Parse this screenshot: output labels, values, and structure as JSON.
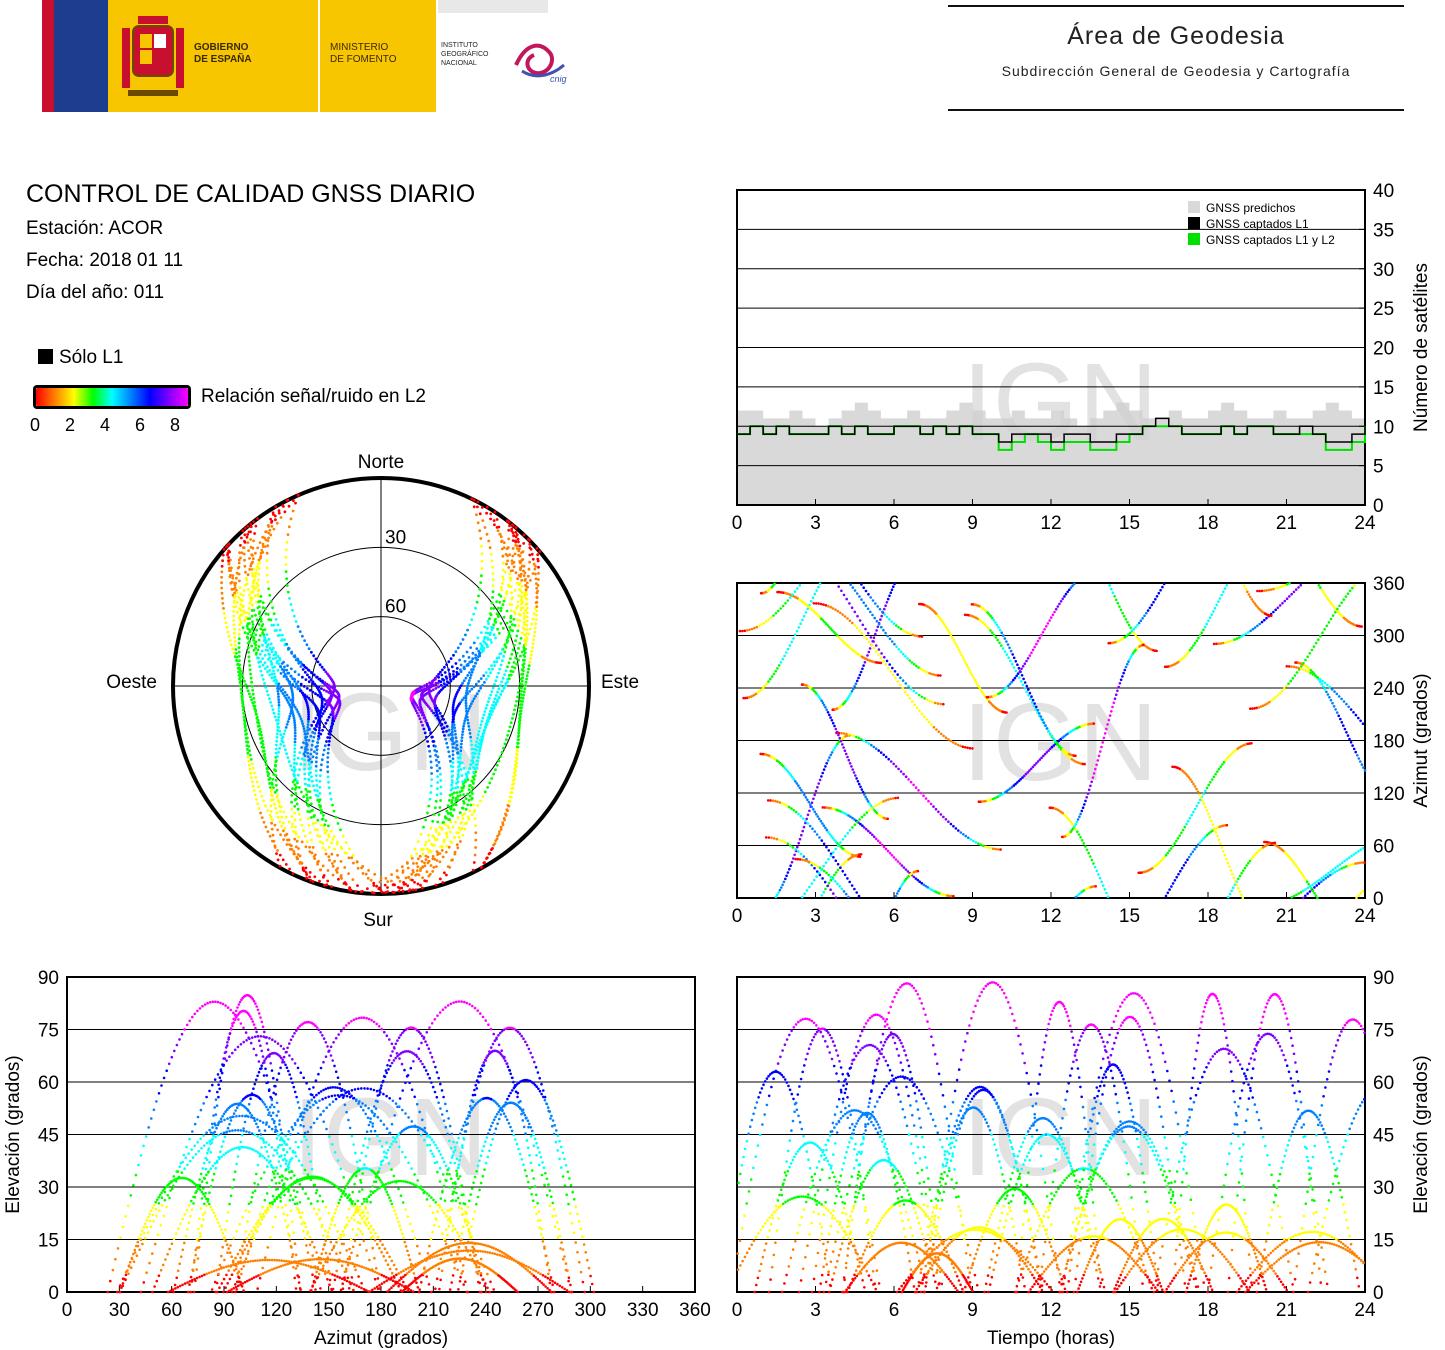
{
  "header": {
    "gov_line1": "GOBIERNO",
    "gov_line2": "DE ESPAÑA",
    "min_line1": "MINISTERIO",
    "min_line2": "DE FOMENTO",
    "ign_line1": "INSTITUTO",
    "ign_line2": "GEOGRÁFICO",
    "ign_line3": "NACIONAL",
    "cnig": "cnig",
    "area_title": "Área de Geodesia",
    "area_subtitle": "Subdirección General de Geodesia y Cartografía"
  },
  "report": {
    "title": "CONTROL DE CALIDAD GNSS DIARIO",
    "station": "Estación: ACOR",
    "date": "Fecha: 2018 01 11",
    "doy": "Día del año: 011",
    "legend_l1": "Sólo L1",
    "legend_snr": "Relación señal/ruido en L2",
    "snr_ticks": [
      "0",
      "2",
      "4",
      "6",
      "8"
    ],
    "watermark": "IGN"
  },
  "colors": {
    "snr_gradient": [
      "#ff0000",
      "#ff8000",
      "#ffff00",
      "#00ff00",
      "#00ffff",
      "#0080ff",
      "#0000ff",
      "#8000ff",
      "#ff00ff"
    ],
    "grid": "#000000",
    "predicted": "#d9d9d9",
    "l1": "#000000",
    "l1l2": "#00e000"
  },
  "chart_data": [
    {
      "type": "area",
      "id": "satellite-count",
      "ylabel": "Número de satélites",
      "x_ticks": [
        "0",
        "3",
        "6",
        "9",
        "12",
        "15",
        "18",
        "21",
        "24"
      ],
      "y_ticks": [
        "0",
        "5",
        "10",
        "15",
        "20",
        "25",
        "30",
        "35",
        "40"
      ],
      "xlim": [
        0,
        24
      ],
      "ylim": [
        0,
        40
      ],
      "legend": [
        "GNSS predichos",
        "GNSS captados L1",
        "GNSS captados L1 y L2"
      ],
      "legend_position": "top-right",
      "series": [
        {
          "name": "GNSS predichos",
          "x": [
            0,
            0.5,
            1,
            1.5,
            2,
            2.5,
            3,
            3.5,
            4,
            4.5,
            5,
            5.5,
            6,
            6.5,
            7,
            7.5,
            8,
            8.5,
            9,
            9.5,
            10,
            10.5,
            11,
            11.5,
            12,
            12.5,
            13,
            13.5,
            14,
            14.5,
            15,
            15.5,
            16,
            16.5,
            17,
            17.5,
            18,
            18.5,
            19,
            19.5,
            20,
            20.5,
            21,
            21.5,
            22,
            22.5,
            23,
            23.5,
            24
          ],
          "values": [
            12,
            12,
            11,
            11,
            12,
            11,
            10,
            11,
            12,
            13,
            12,
            11,
            11,
            12,
            11,
            11,
            12,
            13,
            12,
            11,
            11,
            12,
            11,
            11,
            12,
            11,
            10,
            11,
            12,
            13,
            12,
            11,
            11,
            12,
            11,
            11,
            12,
            13,
            12,
            11,
            11,
            12,
            11,
            11,
            12,
            13,
            12,
            11,
            11
          ]
        },
        {
          "name": "GNSS captados L1",
          "x": [
            0,
            0.5,
            1,
            1.5,
            2,
            2.5,
            3,
            3.5,
            4,
            4.5,
            5,
            5.5,
            6,
            6.5,
            7,
            7.5,
            8,
            8.5,
            9,
            9.5,
            10,
            10.5,
            11,
            11.5,
            12,
            12.5,
            13,
            13.5,
            14,
            14.5,
            15,
            15.5,
            16,
            16.5,
            17,
            17.5,
            18,
            18.5,
            19,
            19.5,
            20,
            20.5,
            21,
            21.5,
            22,
            22.5,
            23,
            23.5,
            24
          ],
          "values": [
            9,
            10,
            9,
            10,
            9,
            9,
            9,
            10,
            9,
            10,
            9,
            9,
            10,
            10,
            9,
            10,
            9,
            10,
            9,
            9,
            8,
            9,
            9,
            9,
            8,
            9,
            9,
            8,
            8,
            9,
            9,
            10,
            11,
            10,
            9,
            9,
            9,
            10,
            9,
            10,
            10,
            9,
            9,
            10,
            9,
            8,
            8,
            9,
            10
          ]
        },
        {
          "name": "GNSS captados L1 y L2",
          "x": [
            0,
            0.5,
            1,
            1.5,
            2,
            2.5,
            3,
            3.5,
            4,
            4.5,
            5,
            5.5,
            6,
            6.5,
            7,
            7.5,
            8,
            8.5,
            9,
            9.5,
            10,
            10.5,
            11,
            11.5,
            12,
            12.5,
            13,
            13.5,
            14,
            14.5,
            15,
            15.5,
            16,
            16.5,
            17,
            17.5,
            18,
            18.5,
            19,
            19.5,
            20,
            20.5,
            21,
            21.5,
            22,
            22.5,
            23,
            23.5,
            24
          ],
          "values": [
            9,
            10,
            9,
            10,
            9,
            9,
            9,
            10,
            9,
            10,
            9,
            9,
            10,
            10,
            9,
            10,
            9,
            10,
            9,
            9,
            7,
            8,
            9,
            8,
            7,
            8,
            8,
            7,
            7,
            8,
            9,
            10,
            10,
            10,
            9,
            9,
            9,
            10,
            9,
            10,
            10,
            9,
            9,
            9,
            9,
            7,
            7,
            8,
            10
          ]
        }
      ]
    },
    {
      "type": "scatter",
      "id": "skyplot",
      "direction_labels": [
        "Norte",
        "Sur",
        "Este",
        "Oeste"
      ],
      "ring_labels": [
        "30",
        "60"
      ]
    },
    {
      "type": "scatter",
      "id": "azimuth-time",
      "ylabel": "Azimut (grados)",
      "x_ticks": [
        "0",
        "3",
        "6",
        "9",
        "12",
        "15",
        "18",
        "21",
        "24"
      ],
      "y_ticks": [
        "0",
        "60",
        "120",
        "180",
        "240",
        "300",
        "360"
      ],
      "xlim": [
        0,
        24
      ],
      "ylim": [
        0,
        360
      ]
    },
    {
      "type": "scatter",
      "id": "elevation-azimuth",
      "xlabel": "Azimut (grados)",
      "ylabel": "Elevación (grados)",
      "x_ticks": [
        "0",
        "30",
        "60",
        "90",
        "120",
        "150",
        "180",
        "210",
        "240",
        "270",
        "300",
        "330",
        "360"
      ],
      "y_ticks": [
        "0",
        "15",
        "30",
        "45",
        "60",
        "75",
        "90"
      ],
      "xlim": [
        0,
        360
      ],
      "ylim": [
        0,
        90
      ]
    },
    {
      "type": "scatter",
      "id": "elevation-time",
      "xlabel": "Tiempo (horas)",
      "ylabel": "Elevación (grados)",
      "x_ticks": [
        "0",
        "3",
        "6",
        "9",
        "12",
        "15",
        "18",
        "21",
        "24"
      ],
      "y_ticks": [
        "0",
        "15",
        "30",
        "45",
        "60",
        "75",
        "90"
      ],
      "xlim": [
        0,
        24
      ],
      "ylim": [
        0,
        90
      ]
    }
  ]
}
